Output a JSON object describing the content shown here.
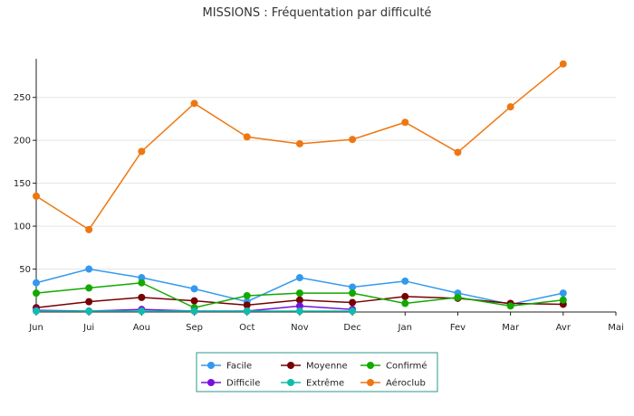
{
  "chart_data": {
    "type": "line",
    "title": "MISSIONS : Fréquentation par difficulté",
    "xlabel": "",
    "ylabel": "",
    "categories": [
      "Jun",
      "Jui",
      "Aou",
      "Sep",
      "Oct",
      "Nov",
      "Dec",
      "Jan",
      "Fev",
      "Mar",
      "Avr",
      "Mai"
    ],
    "ylim": [
      0,
      295
    ],
    "yticks": [
      "50",
      "100",
      "150",
      "200",
      "250"
    ],
    "grid": true,
    "legend_position": "bottom-center",
    "series": [
      {
        "name": "Facile",
        "color": "#3399ee",
        "values": [
          34,
          50,
          40,
          27,
          12,
          40,
          29,
          36,
          22,
          9,
          22,
          null
        ]
      },
      {
        "name": "Moyenne",
        "color": "#770000",
        "values": [
          5,
          12,
          17,
          13,
          8,
          14,
          11,
          18,
          16,
          10,
          9,
          null
        ]
      },
      {
        "name": "Confirmé",
        "color": "#11aa00",
        "values": [
          22,
          28,
          34,
          5,
          19,
          22,
          22,
          10,
          17,
          7,
          14,
          null
        ]
      },
      {
        "name": "Difficile",
        "color": "#7711dd",
        "values": [
          2,
          1,
          3,
          1,
          1,
          7,
          3,
          null,
          null,
          null,
          null,
          null
        ]
      },
      {
        "name": "Extrême",
        "color": "#11bbaa",
        "values": [
          1,
          1,
          1,
          1,
          1,
          1,
          1,
          null,
          null,
          null,
          null,
          null
        ]
      },
      {
        "name": "Aéroclub",
        "color": "#ee7711",
        "values": [
          135,
          96,
          187,
          243,
          204,
          196,
          201,
          221,
          186,
          239,
          289,
          null
        ]
      }
    ]
  }
}
